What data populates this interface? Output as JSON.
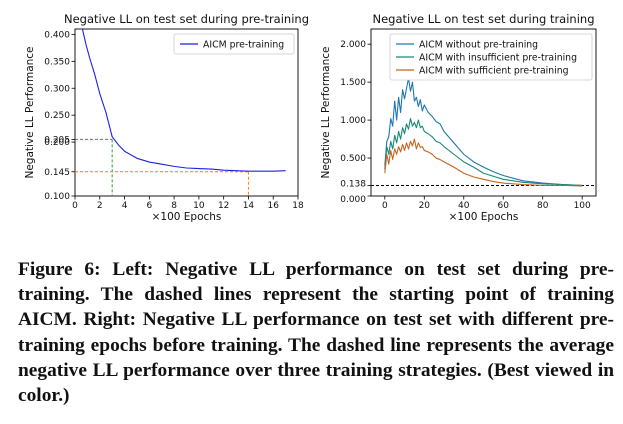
{
  "caption": {
    "text": "Figure 6: Left: Negative LL performance on test set during pre-training. The dashed lines represent the starting point of training AICM. Right: Negative LL performance on test set with different pre-training epochs before training. The dashed line represents the average negative LL performance over three training strategies. (Best viewed in color.)"
  },
  "chart_data": [
    {
      "type": "line",
      "title": "Negative LL on test set during pre-training",
      "xlabel": "×100 Epochs",
      "ylabel": "Negative LL Performance",
      "xlim": [
        0,
        18
      ],
      "ylim": [
        0.1,
        0.41
      ],
      "xticks": [
        0,
        2,
        4,
        6,
        8,
        10,
        12,
        14,
        16,
        18
      ],
      "yticks": [
        0.1,
        0.145,
        0.2,
        0.205,
        0.25,
        0.3,
        0.35,
        0.4
      ],
      "ytick_labels": [
        "0.100",
        "0.145",
        "0.200",
        "0.205",
        "0.250",
        "0.300",
        "0.350",
        "0.400"
      ],
      "grid": false,
      "legend": "top-right",
      "series": [
        {
          "name": "AICM pre-training",
          "color": "#1f1fe6",
          "x": [
            0.6,
            0.9,
            1.2,
            1.6,
            2.0,
            2.5,
            3.0,
            3.5,
            4.0,
            5.0,
            6.0,
            7.0,
            8.0,
            9.0,
            10.0,
            11.0,
            12.0,
            13.0,
            14.0,
            15.0,
            16.0,
            17.0
          ],
          "y": [
            0.41,
            0.38,
            0.355,
            0.325,
            0.29,
            0.255,
            0.21,
            0.195,
            0.183,
            0.17,
            0.163,
            0.159,
            0.155,
            0.152,
            0.151,
            0.15,
            0.148,
            0.147,
            0.146,
            0.146,
            0.146,
            0.147
          ]
        }
      ],
      "annotations": [
        {
          "type": "dashed-marker",
          "color": "#2ca02c",
          "x": 3,
          "y": 0.205
        },
        {
          "type": "dashed-marker",
          "color": "#ff7f0e",
          "x": 14,
          "y": 0.145
        }
      ]
    },
    {
      "type": "line",
      "title": "Negative LL on test set during training",
      "xlabel": "×100 Epochs",
      "ylabel": "Negative LL Performance",
      "xlim": [
        -7,
        107
      ],
      "ylim": [
        0,
        2.2
      ],
      "xticks": [
        0,
        20,
        40,
        60,
        80,
        100
      ],
      "yticks": [
        0,
        0.138,
        0.5,
        1.0,
        1.5,
        2.0
      ],
      "ytick_labels": [
        "0.000",
        "0.138",
        "0.500",
        "1.000",
        "1.500",
        "2.000"
      ],
      "grid": false,
      "legend": "top-right",
      "reference_line": {
        "y": 0.138,
        "style": "dashed",
        "color": "#000000"
      },
      "series": [
        {
          "name": "AICM without pre-training",
          "color": "#1f77b4",
          "x": [
            0,
            1,
            2,
            3,
            4,
            5,
            6,
            7,
            8,
            9,
            10,
            11,
            12,
            13,
            14,
            15,
            16,
            17,
            18,
            19,
            20,
            22,
            24,
            26,
            28,
            30,
            35,
            40,
            45,
            50,
            55,
            60,
            70,
            80,
            90,
            100
          ],
          "y": [
            0.4,
            0.72,
            0.78,
            1.02,
            0.92,
            1.25,
            1.0,
            1.3,
            1.1,
            1.4,
            1.28,
            1.42,
            1.55,
            1.38,
            1.5,
            1.25,
            1.3,
            1.18,
            1.27,
            1.12,
            1.2,
            1.1,
            1.05,
            0.98,
            0.95,
            0.85,
            0.7,
            0.55,
            0.45,
            0.38,
            0.32,
            0.27,
            0.2,
            0.17,
            0.15,
            0.14
          ]
        },
        {
          "name": "AICM with insufficient pre-training",
          "color": "#1a8a74",
          "x": [
            0,
            1,
            2,
            3,
            4,
            5,
            6,
            7,
            8,
            9,
            10,
            11,
            12,
            13,
            14,
            15,
            16,
            17,
            18,
            19,
            20,
            22,
            24,
            26,
            28,
            30,
            35,
            40,
            45,
            50,
            55,
            60,
            70,
            80,
            90,
            100
          ],
          "y": [
            0.35,
            0.65,
            0.55,
            0.72,
            0.62,
            0.8,
            0.7,
            0.85,
            0.75,
            0.9,
            0.82,
            0.95,
            0.88,
            1.02,
            0.92,
            0.97,
            0.9,
            1.0,
            0.9,
            0.92,
            0.85,
            0.82,
            0.78,
            0.72,
            0.7,
            0.65,
            0.55,
            0.45,
            0.38,
            0.3,
            0.26,
            0.22,
            0.18,
            0.16,
            0.15,
            0.14
          ]
        },
        {
          "name": "AICM with sufficient pre-training",
          "color": "#c8641e",
          "x": [
            0,
            1,
            2,
            3,
            4,
            5,
            6,
            7,
            8,
            9,
            10,
            11,
            12,
            13,
            14,
            15,
            16,
            17,
            18,
            19,
            20,
            22,
            24,
            26,
            28,
            30,
            35,
            40,
            45,
            50,
            55,
            60,
            70,
            80,
            90,
            100
          ],
          "y": [
            0.3,
            0.55,
            0.42,
            0.6,
            0.48,
            0.62,
            0.55,
            0.65,
            0.58,
            0.68,
            0.6,
            0.7,
            0.62,
            0.72,
            0.66,
            0.75,
            0.62,
            0.7,
            0.64,
            0.65,
            0.6,
            0.58,
            0.55,
            0.5,
            0.48,
            0.45,
            0.38,
            0.3,
            0.25,
            0.22,
            0.19,
            0.17,
            0.15,
            0.14,
            0.14,
            0.13
          ]
        }
      ]
    }
  ]
}
